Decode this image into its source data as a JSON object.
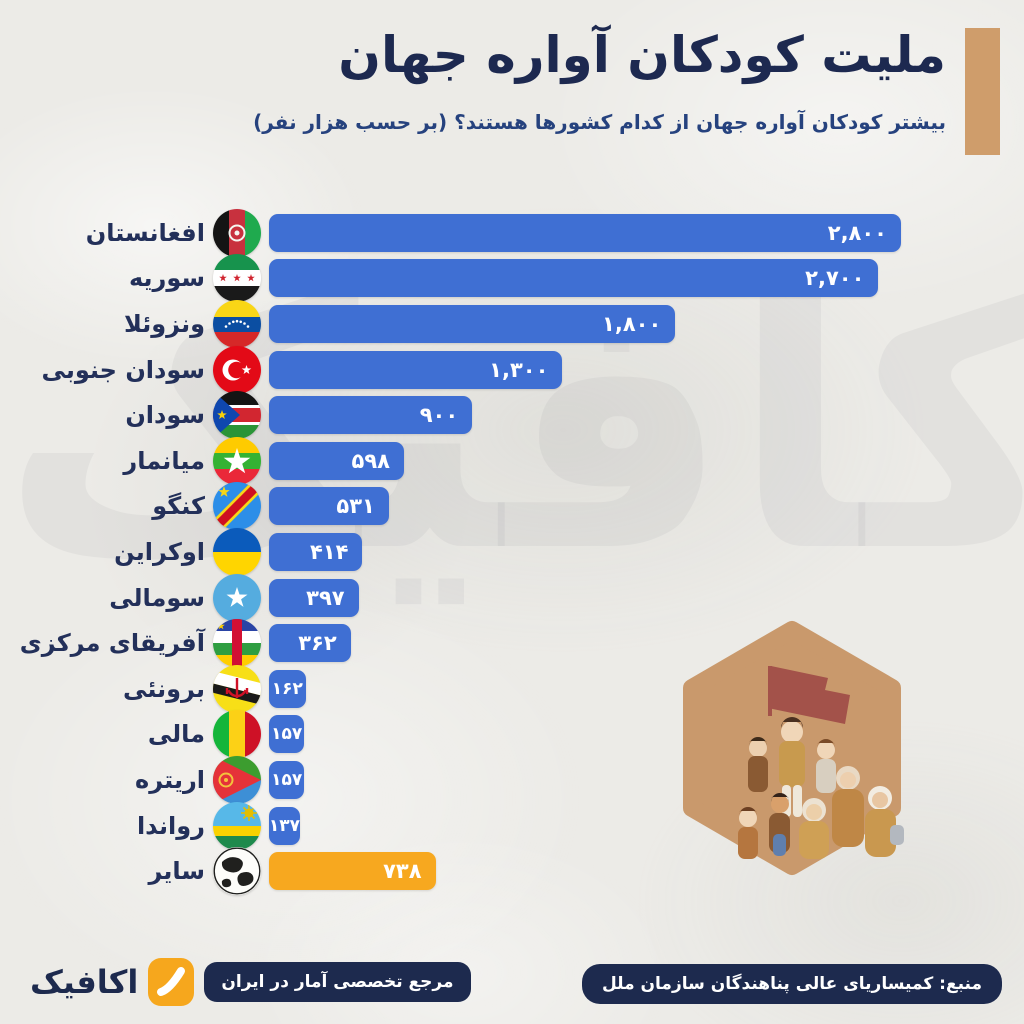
{
  "header": {
    "title": "ملیت کودکان آواره جهان",
    "subtitle": "بیشتر کودکان آواره جهان از کدام کشورها هستند؟ (بر حسب هزار نفر)",
    "accent_color": "#cf9d6b"
  },
  "chart_data": {
    "type": "bar",
    "orientation": "horizontal",
    "title": "ملیت کودکان آواره جهان",
    "unit_note": "بر حسب هزار نفر",
    "value_axis_max": 2800,
    "grid": false,
    "legend": false,
    "colors": {
      "bar": "#3f6fd3",
      "other": "#f7a81f",
      "value_text": "#ffffff"
    },
    "rows": [
      {
        "label": "افغانستان",
        "value": 2800,
        "value_label": "۲,۸۰۰",
        "flag": "afghanistan",
        "other": false
      },
      {
        "label": "سوریه",
        "value": 2700,
        "value_label": "۲,۷۰۰",
        "flag": "syria",
        "other": false
      },
      {
        "label": "ونزوئلا",
        "value": 1800,
        "value_label": "۱,۸۰۰",
        "flag": "venezuela",
        "other": false
      },
      {
        "label": "سودان جنوبی",
        "value": 1300,
        "value_label": "۱,۳۰۰",
        "flag": "turkey",
        "other": false
      },
      {
        "label": "سودان",
        "value": 900,
        "value_label": "۹۰۰",
        "flag": "south-sudan",
        "other": false
      },
      {
        "label": "میانمار",
        "value": 598,
        "value_label": "۵۹۸",
        "flag": "myanmar",
        "other": false
      },
      {
        "label": "کنگو",
        "value": 531,
        "value_label": "۵۳۱",
        "flag": "dr-congo",
        "other": false
      },
      {
        "label": "اوکراین",
        "value": 414,
        "value_label": "۴۱۴",
        "flag": "ukraine",
        "other": false
      },
      {
        "label": "سومالی",
        "value": 397,
        "value_label": "۳۹۷",
        "flag": "somalia",
        "other": false
      },
      {
        "label": "آفریقای مرکزی",
        "value": 362,
        "value_label": "۳۶۲",
        "flag": "central-african-republic",
        "other": false
      },
      {
        "label": "برونئی",
        "value": 162,
        "value_label": "۱۶۲",
        "flag": "brunei",
        "other": false
      },
      {
        "label": "مالی",
        "value": 157,
        "value_label": "۱۵۷",
        "flag": "mali",
        "other": false
      },
      {
        "label": "اریتره",
        "value": 157,
        "value_label": "۱۵۷",
        "flag": "eritrea",
        "other": false
      },
      {
        "label": "رواندا",
        "value": 137,
        "value_label": "۱۳۷",
        "flag": "rwanda",
        "other": false
      },
      {
        "label": "سایر",
        "value": 738,
        "value_label": "۷۳۸",
        "flag": "globe",
        "other": true
      }
    ]
  },
  "watermark": {
    "text": "اکافیک"
  },
  "footer": {
    "brand_wordmark": "اکافیک",
    "brand_tagline": "مرجع تخصصی آمار در ایران",
    "source": "منبع: کمیساریای عالی پناهندگان سازمان ملل",
    "brand_navy": "#1d2a4e",
    "brand_orange": "#f6a71d"
  }
}
